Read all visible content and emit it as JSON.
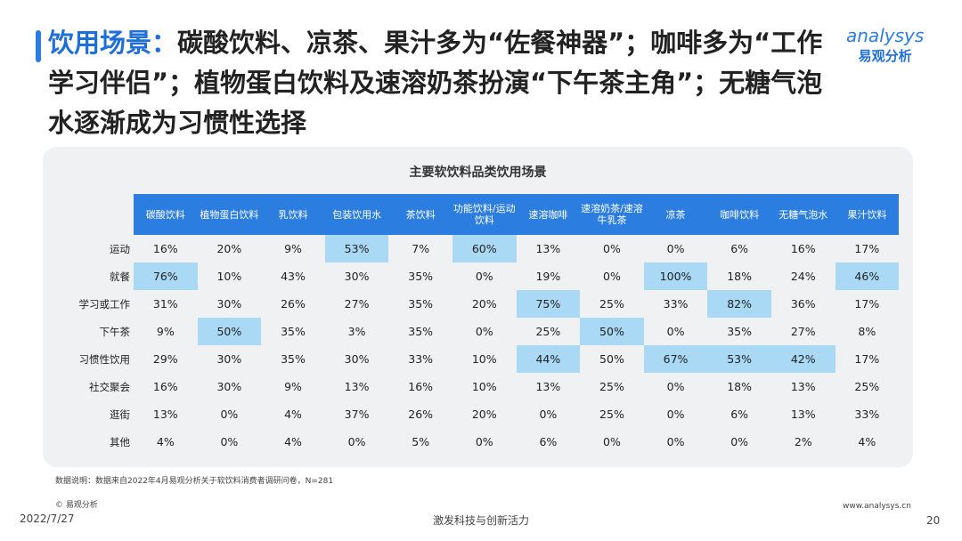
{
  "header": {
    "title_lead": "饮用场景：",
    "title_rest": "碳酸饮料、凉茶、果汁多为“佐餐神器”；咖啡多为“工作学习伴侣”；植物蛋白饮料及速溶奶茶扮演“下午茶主角”；无糖气泡水逐渐成为习惯性选择",
    "logo_en": "analysys",
    "logo_cn": "易观分析"
  },
  "table": {
    "title": "主要软饮料品类饮用场景",
    "columns": [
      "碳酸饮料",
      "植物蛋白饮料",
      "乳饮料",
      "包装饮用水",
      "茶饮料",
      "功能饮料/运动饮料",
      "速溶咖啡",
      "速溶奶茶/速溶牛乳茶",
      "凉茶",
      "咖啡饮料",
      "无糖气泡水",
      "果汁饮料"
    ],
    "rows": [
      {
        "label": "运动",
        "cells": [
          "16%",
          "20%",
          "9%",
          "53%",
          "7%",
          "60%",
          "13%",
          "0%",
          "0%",
          "6%",
          "16%",
          "17%"
        ]
      },
      {
        "label": "就餐",
        "cells": [
          "76%",
          "10%",
          "43%",
          "30%",
          "35%",
          "0%",
          "19%",
          "0%",
          "100%",
          "18%",
          "24%",
          "46%"
        ]
      },
      {
        "label": "学习或工作",
        "cells": [
          "31%",
          "30%",
          "26%",
          "27%",
          "35%",
          "20%",
          "75%",
          "25%",
          "33%",
          "82%",
          "36%",
          "17%"
        ]
      },
      {
        "label": "下午茶",
        "cells": [
          "9%",
          "50%",
          "35%",
          "3%",
          "35%",
          "0%",
          "25%",
          "50%",
          "0%",
          "35%",
          "27%",
          "8%"
        ]
      },
      {
        "label": "习惯性饮用",
        "cells": [
          "29%",
          "30%",
          "35%",
          "30%",
          "33%",
          "10%",
          "44%",
          "50%",
          "67%",
          "53%",
          "42%",
          "17%"
        ]
      },
      {
        "label": "社交聚会",
        "cells": [
          "16%",
          "30%",
          "9%",
          "13%",
          "16%",
          "10%",
          "13%",
          "25%",
          "0%",
          "18%",
          "13%",
          "25%"
        ]
      },
      {
        "label": "逛街",
        "cells": [
          "13%",
          "0%",
          "4%",
          "37%",
          "26%",
          "20%",
          "0%",
          "25%",
          "0%",
          "6%",
          "13%",
          "33%"
        ]
      },
      {
        "label": "其他",
        "cells": [
          "4%",
          "0%",
          "4%",
          "0%",
          "5%",
          "0%",
          "6%",
          "0%",
          "0%",
          "0%",
          "2%",
          "4%"
        ]
      }
    ],
    "highlighted_cells": [
      [
        0,
        3
      ],
      [
        0,
        5
      ],
      [
        1,
        0
      ],
      [
        1,
        8
      ],
      [
        1,
        11
      ],
      [
        2,
        6
      ],
      [
        2,
        9
      ],
      [
        3,
        1
      ],
      [
        3,
        7
      ],
      [
        4,
        6
      ],
      [
        4,
        8
      ],
      [
        4,
        9
      ],
      [
        4,
        10
      ]
    ],
    "header_color": "#2b7de0",
    "highlight_color": "#a9d9f5"
  },
  "footer": {
    "note": "数据说明：数据来自2022年4月易观分析关于软饮料消费者调研问卷，N=281",
    "copyright": "© 易观分析",
    "date": "2022/7/27",
    "slogan": "激发科技与创新活力",
    "website": "www.analysys.cn",
    "page": "20"
  }
}
